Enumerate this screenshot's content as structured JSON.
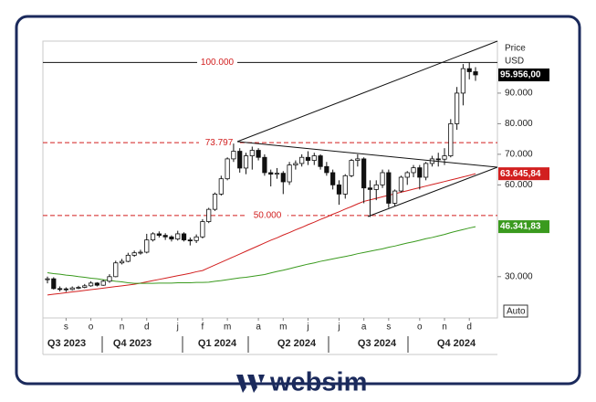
{
  "chart_data": {
    "type": "candlestick",
    "categories": [
      null,
      null,
      null,
      "s",
      null,
      null,
      null,
      "o",
      null,
      null,
      null,
      null,
      "n",
      null,
      null,
      null,
      "d",
      null,
      null,
      null,
      null,
      "j",
      null,
      null,
      null,
      "f",
      null,
      null,
      null,
      "m",
      null,
      null,
      null,
      null,
      "a",
      null,
      null,
      null,
      "m",
      null,
      null,
      null,
      "j",
      null,
      null,
      null,
      null,
      "j",
      null,
      null,
      null,
      "a",
      null,
      null,
      null,
      "s",
      null,
      null,
      null,
      null,
      "o",
      null,
      null,
      null,
      "n",
      null,
      null,
      null,
      "d",
      null
    ],
    "quarters": [
      "Q3 2023",
      "Q4 2023",
      "Q1 2024",
      "Q2 2024",
      "Q3 2024",
      "Q4 2024"
    ],
    "open": [
      29000,
      29300,
      26100,
      26000,
      25800,
      26300,
      26500,
      27000,
      27900,
      27200,
      28500,
      30000,
      34500,
      35000,
      37000,
      37800,
      38000,
      42000,
      44000,
      43500,
      43000,
      42300,
      44000,
      42000,
      41800,
      43000,
      48000,
      52000,
      57000,
      62000,
      68500,
      71000,
      65500,
      69500,
      71300,
      69000,
      64000,
      63500,
      63800,
      61000,
      66500,
      67000,
      69000,
      68000,
      69500,
      66000,
      64000,
      60000,
      57000,
      63000,
      68000,
      68500,
      59000,
      58500,
      60000,
      64000,
      54000,
      58000,
      62500,
      64000,
      65600,
      62500,
      67000,
      68500,
      68400,
      69500,
      80000,
      90000,
      98000,
      97000
    ],
    "high": [
      30000,
      29800,
      26800,
      26500,
      26800,
      27000,
      27600,
      28500,
      28200,
      29000,
      30800,
      35200,
      35800,
      37800,
      38500,
      38800,
      44000,
      44500,
      44800,
      44200,
      43500,
      45000,
      44500,
      42800,
      43800,
      48800,
      52500,
      57500,
      63000,
      69000,
      73500,
      72000,
      70500,
      72500,
      72000,
      70000,
      65000,
      65500,
      64500,
      67500,
      68000,
      70000,
      71000,
      70500,
      70000,
      67500,
      65000,
      61500,
      63500,
      68500,
      70000,
      69000,
      61500,
      61500,
      65000,
      65000,
      58500,
      63000,
      64500,
      66500,
      66500,
      67500,
      69500,
      70500,
      72000,
      81500,
      92000,
      99500,
      100000,
      98500
    ],
    "low": [
      27800,
      25800,
      25200,
      25000,
      25500,
      25900,
      26200,
      26700,
      26800,
      27000,
      28000,
      29800,
      34000,
      34700,
      36500,
      37200,
      37600,
      41500,
      42800,
      42000,
      41500,
      41800,
      41500,
      40200,
      41000,
      42500,
      47500,
      51500,
      56500,
      61500,
      67500,
      64000,
      63500,
      65000,
      68000,
      63000,
      59500,
      62000,
      57000,
      60000,
      65000,
      66000,
      66500,
      66500,
      65000,
      63000,
      58500,
      53500,
      55500,
      62500,
      66000,
      54000,
      49500,
      55000,
      59000,
      52500,
      53000,
      57500,
      60000,
      62500,
      58500,
      61500,
      66000,
      66000,
      66500,
      69000,
      78000,
      86000,
      94500,
      94000
    ],
    "close": [
      29300,
      26100,
      26000,
      25800,
      26300,
      26500,
      27000,
      27900,
      27200,
      28500,
      30000,
      34500,
      35000,
      37000,
      37800,
      38000,
      42000,
      44000,
      43500,
      43000,
      42300,
      44000,
      42000,
      41800,
      43000,
      48000,
      52000,
      57000,
      62000,
      68500,
      71000,
      65500,
      69500,
      71300,
      69000,
      64000,
      63500,
      63800,
      61000,
      66500,
      67000,
      69000,
      68000,
      69500,
      66000,
      64000,
      60000,
      57000,
      63000,
      68000,
      68500,
      59000,
      58500,
      60000,
      64000,
      54000,
      58000,
      62500,
      64000,
      65600,
      62500,
      67000,
      68500,
      68400,
      69500,
      80000,
      90000,
      98000,
      97000,
      95956
    ],
    "last_label": "95.956,00",
    "series": [
      {
        "color": "#d21f1f",
        "last_label": "63.645,84",
        "values": [
          24000,
          24250,
          24500,
          24750,
          25000,
          25250,
          25500,
          25750,
          26000,
          26250,
          26500,
          26750,
          27000,
          27250,
          27500,
          27900,
          28300,
          28700,
          29100,
          29500,
          29900,
          30300,
          30700,
          31100,
          31600,
          32000,
          32900,
          33800,
          34700,
          35600,
          36500,
          37400,
          38300,
          39200,
          40100,
          41000,
          41900,
          42700,
          43600,
          44400,
          45300,
          46100,
          47000,
          47800,
          48700,
          49500,
          50400,
          51200,
          52100,
          52900,
          53800,
          54600,
          55100,
          55600,
          56100,
          56600,
          57100,
          57600,
          58100,
          58600,
          59100,
          59600,
          60100,
          60600,
          61100,
          61600,
          62100,
          62600,
          63100,
          63645.84
        ]
      },
      {
        "color": "#3a9a1e",
        "last_label": "46.341,83",
        "values": [
          31300,
          31000,
          30800,
          30500,
          30300,
          30000,
          29800,
          29500,
          29300,
          29000,
          28800,
          28500,
          28300,
          28000,
          27800,
          27800,
          27800,
          27800,
          27900,
          27900,
          27900,
          28000,
          28000,
          28000,
          28100,
          28100,
          28200,
          28500,
          28700,
          29000,
          29300,
          29600,
          29800,
          30100,
          30400,
          30700,
          31200,
          31700,
          32100,
          32600,
          33100,
          33600,
          34100,
          34500,
          35000,
          35400,
          35800,
          36200,
          36600,
          37000,
          37500,
          37900,
          38300,
          38700,
          39100,
          39600,
          40000,
          40500,
          41000,
          41400,
          41900,
          42400,
          42800,
          43300,
          43800,
          44400,
          44900,
          45400,
          45900,
          46341.83
        ]
      }
    ],
    "levels": [
      {
        "value": 100000,
        "label": "100.000",
        "style": "solid"
      },
      {
        "value": 73797,
        "label": "73.797",
        "style": "dashed"
      },
      {
        "value": 50000,
        "label": "50.000",
        "style": "dashed"
      }
    ],
    "ylim": [
      16500,
      107000
    ],
    "yticks": [
      {
        "value": 30000,
        "label": "30.000"
      },
      {
        "value": 60000,
        "label": "60.000"
      },
      {
        "value": 70000,
        "label": "70.000"
      },
      {
        "value": 80000,
        "label": "80.000"
      },
      {
        "value": 90000,
        "label": "90.000"
      }
    ],
    "axis_title": "Price",
    "axis_unit": "USD",
    "scale_mode": "Auto"
  },
  "brand": "websim"
}
